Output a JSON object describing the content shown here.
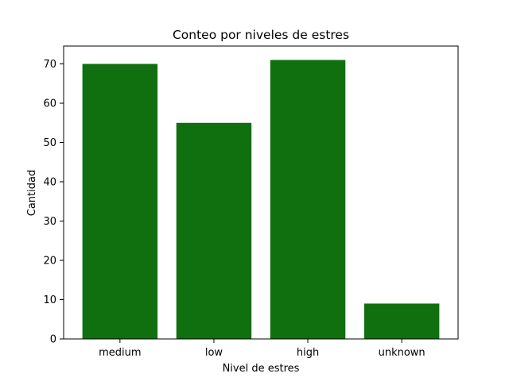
{
  "chart_data": {
    "type": "bar",
    "title": "Conteo por niveles de estres",
    "xlabel": "Nivel de estres",
    "ylabel": "Cantidad",
    "categories": [
      "medium",
      "low",
      "high",
      "unknown"
    ],
    "values": [
      70,
      55,
      71,
      9
    ],
    "ylim": [
      0,
      74.55
    ],
    "yticks": [
      0,
      10,
      20,
      30,
      40,
      50,
      60,
      70
    ],
    "bar_color": "#107010",
    "grid": false,
    "legend": "none"
  }
}
